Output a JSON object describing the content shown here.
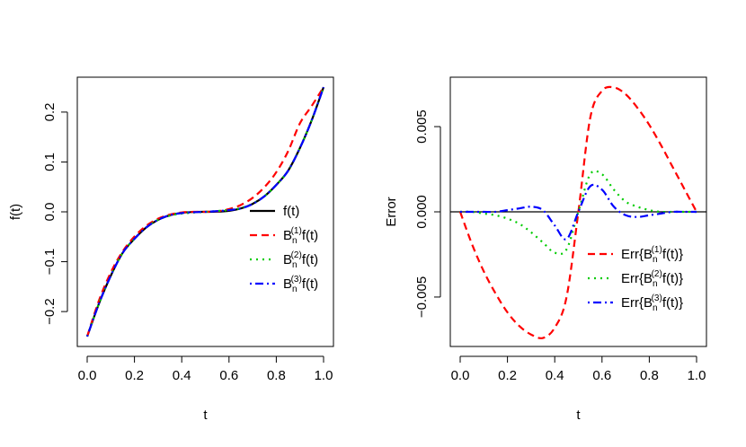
{
  "chart_data": [
    {
      "type": "line",
      "title": "",
      "xlabel": "t",
      "ylabel": "f(t)",
      "xlim": [
        0,
        1
      ],
      "ylim": [
        -0.27,
        0.27
      ],
      "x_ticks": [
        "0.0",
        "0.2",
        "0.4",
        "0.6",
        "0.8",
        "1.0"
      ],
      "y_ticks": [
        "-0.2",
        "-0.1",
        "0.0",
        "0.1",
        "0.2"
      ],
      "legend": {
        "placement": "bottom-right"
      },
      "x": [
        0.0,
        0.05,
        0.1,
        0.15,
        0.2,
        0.25,
        0.3,
        0.35,
        0.4,
        0.45,
        0.5,
        0.55,
        0.6,
        0.65,
        0.7,
        0.75,
        0.8,
        0.85,
        0.9,
        0.95,
        1.0
      ],
      "series": [
        {
          "name": "f(t)",
          "label_base": "f(t)",
          "label_sup": "",
          "color": "#000000",
          "dash": "solid",
          "values": [
            -0.25,
            -0.1838,
            -0.128,
            -0.0824,
            -0.054,
            -0.0313,
            -0.016,
            -0.0068,
            -0.002,
            -0.0003,
            0.0,
            0.0003,
            0.002,
            0.0068,
            0.016,
            0.0313,
            0.054,
            0.0824,
            0.128,
            0.1838,
            0.25
          ]
        },
        {
          "name": "Bn(1)f(t)",
          "label_base": "B",
          "label_sub": "n",
          "label_sup": "(1)",
          "label_tail": "f(t)",
          "color": "#ff0000",
          "dash": "dashed",
          "values": [
            -0.25,
            -0.1775,
            -0.1215,
            -0.0795,
            -0.0495,
            -0.028,
            -0.0138,
            -0.0055,
            -0.0012,
            0.0,
            0.0,
            0.0012,
            0.0055,
            0.0138,
            0.028,
            0.0495,
            0.0795,
            0.1215,
            0.1775,
            0.2125,
            0.25
          ]
        },
        {
          "name": "Bn(2)f(t)",
          "label_base": "B",
          "label_sub": "n",
          "label_sup": "(2)",
          "label_tail": "f(t)",
          "color": "#00cc00",
          "dash": "dotted",
          "values": [
            -0.25,
            -0.1838,
            -0.128,
            -0.0824,
            -0.054,
            -0.0313,
            -0.0161,
            -0.0075,
            -0.0035,
            -0.0015,
            0.0,
            0.0017,
            0.0038,
            0.0075,
            0.0163,
            0.0313,
            0.054,
            0.0824,
            0.128,
            0.1838,
            0.25
          ]
        },
        {
          "name": "Bn(3)f(t)",
          "label_base": "B",
          "label_sub": "n",
          "label_sup": "(3)",
          "label_tail": "f(t)",
          "color": "#0000ff",
          "dash": "dotdash",
          "values": [
            -0.25,
            -0.1838,
            -0.128,
            -0.0824,
            -0.054,
            -0.0313,
            -0.0159,
            -0.0067,
            -0.0025,
            -0.0008,
            0.0,
            0.0015,
            0.0035,
            0.0068,
            0.0157,
            0.0313,
            0.054,
            0.0824,
            0.128,
            0.1838,
            0.25
          ]
        }
      ]
    },
    {
      "type": "line",
      "title": "",
      "xlabel": "t",
      "ylabel": "Error",
      "xlim": [
        0,
        1
      ],
      "ylim": [
        -0.0079,
        0.0079
      ],
      "x_ticks": [
        "0.0",
        "0.2",
        "0.4",
        "0.6",
        "0.8",
        "1.0"
      ],
      "y_ticks": [
        "-0.005",
        "0.000",
        "0.005"
      ],
      "hline": 0,
      "legend": {
        "placement": "bottom-right"
      },
      "x": [
        0.0,
        0.05,
        0.1,
        0.15,
        0.2,
        0.25,
        0.3,
        0.35,
        0.4,
        0.45,
        0.5,
        0.55,
        0.6,
        0.65,
        0.7,
        0.75,
        0.8,
        0.85,
        0.9,
        0.95,
        1.0
      ],
      "series": [
        {
          "name": "Err{Bn(1)f(t)}",
          "label_base": "Err{B",
          "label_sub": "n",
          "label_sup": "(1)",
          "label_tail": "f(t)}",
          "color": "#ff0000",
          "dash": "dashed",
          "values": [
            0.0,
            -0.0019,
            -0.0035,
            -0.0048,
            -0.0059,
            -0.0067,
            -0.0072,
            -0.0074,
            -0.0068,
            -0.005,
            0.0,
            0.0055,
            0.0071,
            0.0073,
            0.0069,
            0.0061,
            0.0051,
            0.0039,
            0.0026,
            0.0013,
            0.0
          ]
        },
        {
          "name": "Err{Bn(2)f(t)}",
          "label_base": "Err{B",
          "label_sub": "n",
          "label_sup": "(2)",
          "label_tail": "f(t)}",
          "color": "#00cc00",
          "dash": "dotted",
          "values": [
            0.0,
            0.0,
            -0.0001,
            -0.0002,
            -0.0004,
            -0.0007,
            -0.0012,
            -0.0018,
            -0.0024,
            -0.0022,
            0.0,
            0.0022,
            0.0022,
            0.0013,
            0.0006,
            0.0003,
            0.0001,
            0.0,
            0.0,
            0.0,
            0.0
          ]
        },
        {
          "name": "Err{Bn(3)f(t)}",
          "label_base": "Err{B",
          "label_sub": "n",
          "label_sup": "(3)",
          "label_tail": "f(t)}",
          "color": "#0000ff",
          "dash": "dotdash",
          "values": [
            0.0,
            0.0,
            0.0,
            0.0,
            0.0001,
            0.0002,
            0.0003,
            0.0001,
            -0.0008,
            -0.0016,
            0.0,
            0.0015,
            0.0013,
            0.0003,
            -0.0002,
            -0.0003,
            -0.0002,
            -0.0001,
            0.0,
            0.0,
            0.0
          ]
        }
      ]
    }
  ]
}
